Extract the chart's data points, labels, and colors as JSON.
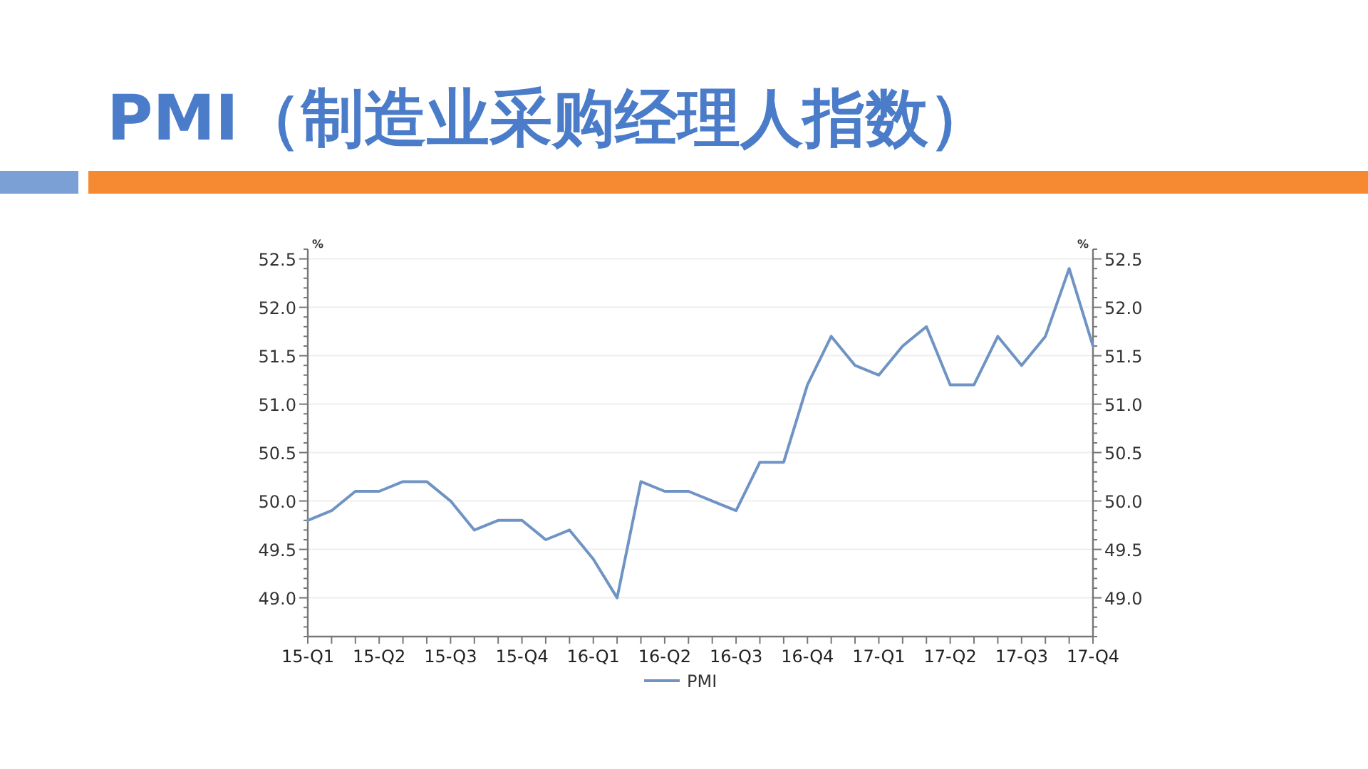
{
  "chart_data": {
    "type": "line",
    "title": "PMI（制造业采购经理人指数）",
    "categories": [
      "15-Q1",
      null,
      null,
      "15-Q2",
      null,
      null,
      "15-Q3",
      null,
      null,
      "15-Q4",
      null,
      null,
      "16-Q1",
      null,
      null,
      "16-Q2",
      null,
      null,
      "16-Q3",
      null,
      null,
      "16-Q4",
      null,
      null,
      "17-Q1",
      null,
      null,
      "17-Q2",
      null,
      null,
      "17-Q3",
      null,
      null,
      "17-Q4"
    ],
    "series": [
      {
        "name": "PMI",
        "color": "#6f94c4",
        "values": [
          49.8,
          49.9,
          50.1,
          50.1,
          50.2,
          50.2,
          50.0,
          49.7,
          49.8,
          49.8,
          49.6,
          49.7,
          49.4,
          49.0,
          50.2,
          50.1,
          50.1,
          50.0,
          49.9,
          50.4,
          50.4,
          51.2,
          51.7,
          51.4,
          51.3,
          51.6,
          51.8,
          51.2,
          51.2,
          51.7,
          51.4,
          51.7,
          52.4,
          51.6
        ]
      }
    ],
    "ylabel": "%",
    "y2label": "%",
    "ylim": [
      48.6,
      52.6
    ],
    "yticks": [
      {
        "value": 49,
        "label": "49.0"
      },
      {
        "value": 49.5,
        "label": "49.5"
      },
      {
        "value": 50,
        "label": "50.0"
      },
      {
        "value": 50.5,
        "label": "50.5"
      },
      {
        "value": 51,
        "label": "51.0"
      },
      {
        "value": 51.5,
        "label": "51.5"
      },
      {
        "value": 52,
        "label": "52.0"
      },
      {
        "value": 52.5,
        "label": "52.5"
      }
    ],
    "y2lim": [
      48.6,
      52.6
    ],
    "y2ticks": [
      {
        "value": 49,
        "label": "49.0"
      },
      {
        "value": 49.5,
        "label": "49.5"
      },
      {
        "value": 50,
        "label": "50.0"
      },
      {
        "value": 50.5,
        "label": "50.5"
      },
      {
        "value": 51,
        "label": "51.0"
      },
      {
        "value": 51.5,
        "label": "51.5"
      },
      {
        "value": 52,
        "label": "52.0"
      },
      {
        "value": 52.5,
        "label": "52.5"
      }
    ],
    "grid": "y",
    "legend": "bottom",
    "marker": "none",
    "line_style": "solid"
  }
}
